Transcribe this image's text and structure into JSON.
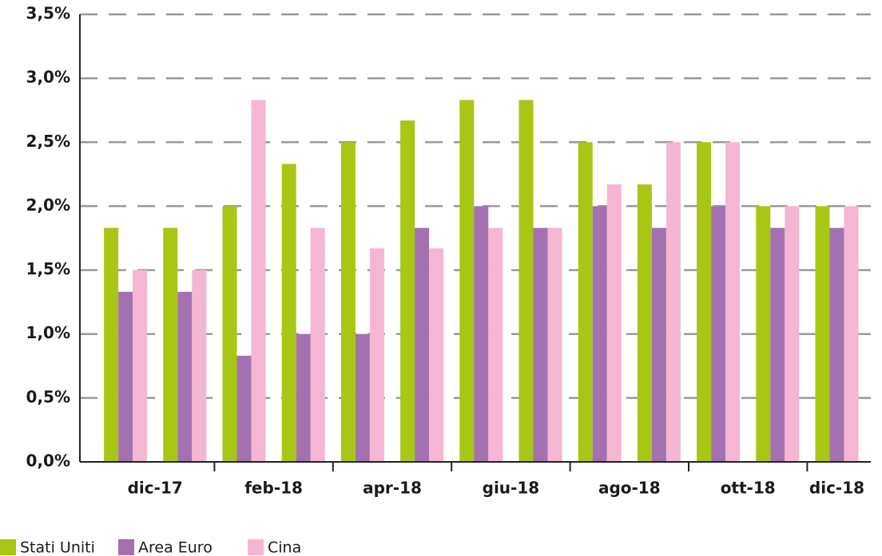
{
  "chart_data": {
    "type": "bar",
    "categories": [
      "dic-17",
      null,
      "feb-18",
      null,
      "apr-18",
      null,
      "giu-18",
      null,
      "ago-18",
      null,
      "ott-18",
      null,
      "dic-18"
    ],
    "series": [
      {
        "name": "Stati Uniti",
        "color": "#a8c614",
        "values": [
          1.83,
          1.83,
          2.0,
          2.33,
          2.5,
          2.67,
          2.83,
          2.83,
          2.5,
          2.17,
          2.5,
          2.0,
          2.0
        ]
      },
      {
        "name": "Area Euro",
        "color": "#a471b0",
        "values": [
          1.33,
          1.33,
          0.83,
          1.0,
          1.0,
          1.83,
          2.0,
          1.83,
          2.0,
          1.83,
          2.0,
          1.83,
          1.83
        ]
      },
      {
        "name": "Cina",
        "color": "#f4b6d2",
        "values": [
          1.5,
          1.5,
          2.83,
          1.83,
          1.67,
          1.67,
          1.83,
          1.83,
          2.17,
          2.5,
          2.5,
          2.0,
          2.0
        ]
      }
    ],
    "ylim": [
      0,
      3.5
    ],
    "yticks": [
      {
        "value": 0,
        "label": "0,0%"
      },
      {
        "value": 0.5,
        "label": "0,5%"
      },
      {
        "value": 1.0,
        "label": "1,0%"
      },
      {
        "value": 1.5,
        "label": "1,5%"
      },
      {
        "value": 2.0,
        "label": "2,0%"
      },
      {
        "value": 2.5,
        "label": "2,5%"
      },
      {
        "value": 3.0,
        "label": "3,0%"
      },
      {
        "value": 3.5,
        "label": "3,5%"
      }
    ],
    "grid": true,
    "legend": "bottom-left"
  }
}
